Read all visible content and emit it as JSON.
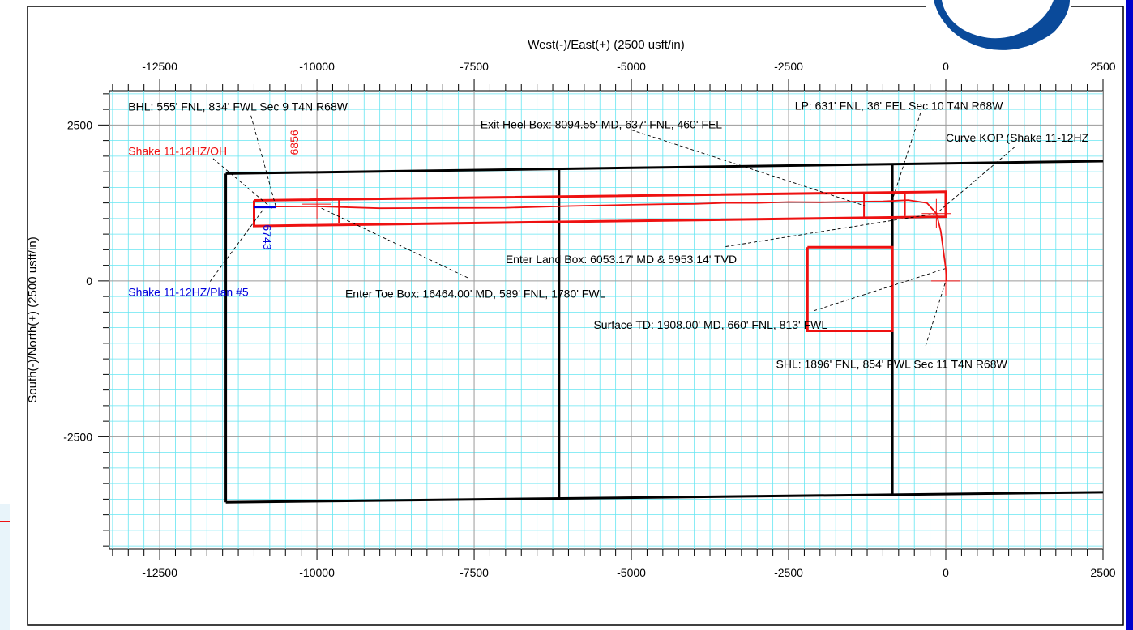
{
  "chart_data": {
    "type": "scatter",
    "title": "",
    "xlabel": "West(-)/East(+) (2500 usft/in)",
    "ylabel": "South(-)/North(+) (2500 usft/in)",
    "xlim": [
      -13300,
      2500
    ],
    "ylim": [
      -4300,
      3050
    ],
    "x_ticks": [
      -12500,
      -10000,
      -7500,
      -5000,
      -2500,
      0,
      2500
    ],
    "y_ticks": [
      2500,
      0,
      -2500
    ],
    "grid": true,
    "colors": {
      "grid_minor": "#66e6f2",
      "grid_major": "#9a9a9a",
      "lease": "#000000",
      "target": "#ee1111",
      "plan": "#0000dd",
      "logo": "#0a4a9a"
    },
    "lease_lines": [
      {
        "name": "",
        "points": [
          [
            -11450,
            1720
          ],
          [
            2500,
            1920
          ]
        ]
      },
      {
        "name": "",
        "points": [
          [
            -11450,
            -3550
          ],
          [
            2500,
            -3390
          ]
        ]
      },
      {
        "name": "",
        "points": [
          [
            -11450,
            1720
          ],
          [
            -11450,
            -3550
          ]
        ]
      },
      {
        "name": "",
        "points": [
          [
            -6150,
            1790
          ],
          [
            -6150,
            -3490
          ]
        ]
      },
      {
        "name": "",
        "points": [
          [
            -850,
            1870
          ],
          [
            -850,
            -3420
          ]
        ]
      }
    ],
    "target_boxes": [
      {
        "name": "",
        "points": [
          [
            -11000,
            1290
          ],
          [
            0,
            1430
          ],
          [
            0,
            1030
          ],
          [
            -11000,
            880
          ],
          [
            -11000,
            1290
          ]
        ]
      },
      {
        "name": "",
        "points": [
          [
            -2200,
            540
          ],
          [
            -850,
            540
          ],
          [
            -850,
            -800
          ],
          [
            -2200,
            -800
          ],
          [
            -2200,
            540
          ]
        ]
      }
    ],
    "target_ticks": [
      {
        "name": "",
        "points": [
          [
            -9650,
            1320
          ],
          [
            -9650,
            920
          ]
        ]
      },
      {
        "name": "",
        "points": [
          [
            -1300,
            1410
          ],
          [
            -1300,
            1020
          ]
        ]
      },
      {
        "name": "",
        "points": [
          [
            -650,
            1390
          ],
          [
            -650,
            1040
          ]
        ]
      }
    ],
    "actual_path": {
      "name": "Shake 11-12HZ/OH",
      "points": [
        [
          -10850,
          1190
        ],
        [
          -10000,
          1195
        ],
        [
          -9000,
          1165
        ],
        [
          -8000,
          1170
        ],
        [
          -7000,
          1172
        ],
        [
          -6000,
          1200
        ],
        [
          -5000,
          1220
        ],
        [
          -4500,
          1230
        ],
        [
          -4000,
          1235
        ],
        [
          -3500,
          1252
        ],
        [
          -3000,
          1250
        ],
        [
          -2500,
          1265
        ],
        [
          -2000,
          1260
        ],
        [
          -1500,
          1270
        ],
        [
          -1000,
          1275
        ],
        [
          -600,
          1295
        ],
        [
          -300,
          1250
        ],
        [
          -150,
          1080
        ],
        [
          -80,
          800
        ],
        [
          0,
          200
        ],
        [
          10,
          0
        ]
      ]
    },
    "plan_path": {
      "name": "Shake 11-12HZ/Plan #5",
      "points": [
        [
          -11000,
          1180
        ],
        [
          -10650,
          1180
        ]
      ]
    },
    "markers": [
      {
        "name": "",
        "x": -10000,
        "y": 1230
      },
      {
        "name": "",
        "x": -150,
        "y": 1080
      },
      {
        "name": "",
        "x": 0,
        "y": 0
      }
    ],
    "depth_labels": [
      {
        "text": "6856",
        "x": -10300,
        "y": 2220,
        "color": "#ee1111"
      },
      {
        "text": "6743",
        "x": -10850,
        "y": 700,
        "color": "#0000dd"
      }
    ],
    "annotations": [
      {
        "text": "BHL: 555' FNL, 834' FWL Sec 9 T4N R68W",
        "x": -13000,
        "y": 2800,
        "color": "#000000",
        "leader": [
          [
            -11050,
            2650
          ],
          [
            -10650,
            1180
          ]
        ]
      },
      {
        "text": "Shake  11-12HZ/OH",
        "x": -13000,
        "y": 2080,
        "color": "#ee1111",
        "leader": [
          [
            -11650,
            1960
          ],
          [
            -10700,
            1150
          ]
        ]
      },
      {
        "text": "Shake  11-12HZ/Plan #5",
        "x": -13000,
        "y": -180,
        "color": "#0000dd",
        "leader": [
          [
            -11700,
            -10
          ],
          [
            -10850,
            1150
          ]
        ]
      },
      {
        "text": "Exit Heel Box: 8094.55' MD, 637' FNL, 460' FEL",
        "x": -7400,
        "y": 2510,
        "color": "#000000",
        "leader": [
          [
            -5000,
            2420
          ],
          [
            -1250,
            1190
          ]
        ]
      },
      {
        "text": "LP: 631' FNL, 36' FEL Sec 10 T4N R68W",
        "x": -2400,
        "y": 2810,
        "color": "#000000",
        "leader": [
          [
            -400,
            2700
          ],
          [
            -850,
            1300
          ]
        ]
      },
      {
        "text": "Curve KOP (Shake 11-12HZ",
        "x": 0,
        "y": 2300,
        "color": "#000000",
        "leader": [
          [
            1100,
            2150
          ],
          [
            -150,
            1080
          ]
        ]
      },
      {
        "text": "Enter Land Box: 6053.17' MD & 5953.14' TVD",
        "x": -7000,
        "y": 350,
        "color": "#000000",
        "leader": [
          [
            -3500,
            550
          ],
          [
            -150,
            1080
          ]
        ]
      },
      {
        "text": "Enter Toe Box: 16464.00' MD, 589' FNL, 1780' FWL",
        "x": -9550,
        "y": -200,
        "color": "#000000",
        "leader": [
          [
            -7600,
            50
          ],
          [
            -10000,
            1200
          ]
        ]
      },
      {
        "text": "Surface TD: 1908.00' MD, 660' FNL, 813' FWL",
        "x": -5600,
        "y": -700,
        "color": "#000000",
        "leader": [
          [
            -2100,
            -480
          ],
          [
            0,
            200
          ]
        ]
      },
      {
        "text": "SHL: 1896' FNL, 854' FWL Sec 11 T4N R68W",
        "x": -2700,
        "y": -1330,
        "color": "#000000",
        "leader": [
          [
            -320,
            -1040
          ],
          [
            0,
            0
          ]
        ]
      }
    ]
  }
}
